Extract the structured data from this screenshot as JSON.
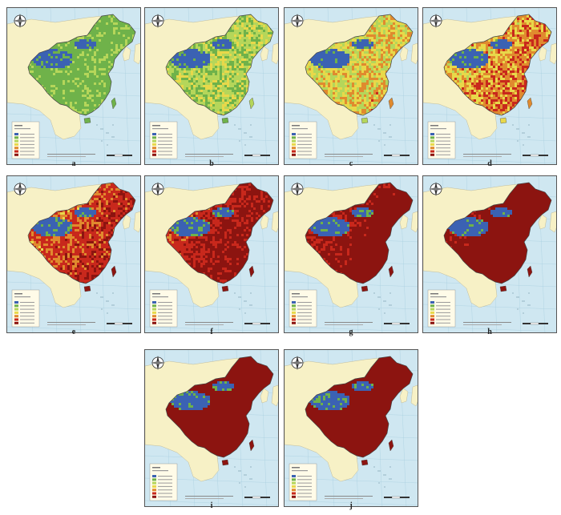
{
  "figure": {
    "panels": [
      {
        "label": "a",
        "heat": 0.0
      },
      {
        "label": "b",
        "heat": 0.12
      },
      {
        "label": "c",
        "heat": 0.24
      },
      {
        "label": "d",
        "heat": 0.34
      },
      {
        "label": "e",
        "heat": 0.46
      },
      {
        "label": "f",
        "heat": 0.58
      },
      {
        "label": "g",
        "heat": 0.66
      },
      {
        "label": "h",
        "heat": 0.76
      },
      {
        "label": "i",
        "heat": 0.88
      },
      {
        "label": "j",
        "heat": 0.97
      }
    ]
  },
  "colors": {
    "ocean": "#cfe7f1",
    "land_outside": "#f7f1c6",
    "blue": "#3b62b3",
    "green": "#6fb24a",
    "lightgreen": "#b5d65a",
    "yellow": "#e8d84a",
    "orange": "#e08a2e",
    "red": "#c8281c",
    "darkred": "#8c1410"
  },
  "map_icons": {
    "compass": "north-arrow-icon",
    "scalebar": "scale-bar-icon"
  }
}
